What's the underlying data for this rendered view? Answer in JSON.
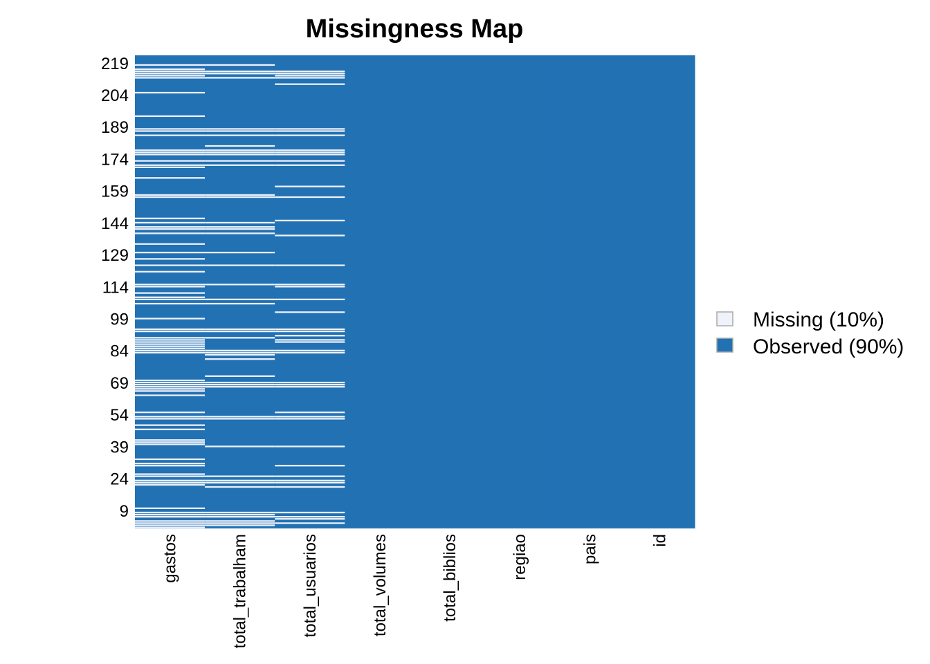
{
  "chart_data": {
    "type": "heatmap",
    "title": "Missingness Map",
    "xlabel": "",
    "ylabel": "",
    "variables": [
      "gastos",
      "total_trabalham",
      "total_usuarios",
      "total_volumes",
      "total_biblios",
      "regiao",
      "pais",
      "id"
    ],
    "y_tick_labels": [
      "219",
      "204",
      "189",
      "174",
      "159",
      "144",
      "129",
      "114",
      "99",
      "84",
      "69",
      "54",
      "39",
      "24",
      "9"
    ],
    "n_rows": 222,
    "ylim": [
      1,
      222
    ],
    "legend": {
      "position": "right",
      "entries": [
        {
          "label": "Missing (10%)",
          "color": "#eef2fa"
        },
        {
          "label": "Observed (90%)",
          "color": "#2271b3"
        }
      ]
    },
    "colors": {
      "missing": "#eef2fa",
      "observed": "#2271b3"
    },
    "missing_rows": {
      "gastos": [
        1,
        2,
        3,
        4,
        6,
        7,
        8,
        10,
        21,
        22,
        23,
        25,
        26,
        30,
        31,
        33,
        40,
        41,
        42,
        47,
        49,
        52,
        53,
        55,
        63,
        65,
        66,
        67,
        68,
        69,
        70,
        83,
        84,
        85,
        86,
        87,
        88,
        89,
        90,
        93,
        94,
        99,
        106,
        108,
        109,
        111,
        114,
        115,
        121,
        124,
        127,
        130,
        134,
        139,
        141,
        142,
        144,
        146,
        156,
        157,
        165,
        170,
        171,
        173,
        176,
        177,
        178,
        185,
        187,
        188,
        194,
        205,
        212,
        213,
        214,
        215,
        216,
        218
      ],
      "total_trabalham": [
        2,
        3,
        4,
        6,
        7,
        8,
        20,
        22,
        23,
        25,
        39,
        52,
        53,
        67,
        68,
        69,
        72,
        80,
        82,
        83,
        84,
        90,
        93,
        94,
        106,
        108,
        115,
        124,
        130,
        139,
        141,
        142,
        144,
        156,
        157,
        171,
        173,
        176,
        177,
        178,
        180,
        185,
        187,
        188,
        212,
        214,
        215,
        218
      ],
      "total_usuarios": [
        3,
        5,
        6,
        8,
        20,
        22,
        23,
        25,
        30,
        39,
        52,
        53,
        55,
        67,
        68,
        69,
        83,
        84,
        88,
        89,
        91,
        93,
        94,
        102,
        108,
        114,
        115,
        124,
        138,
        145,
        156,
        161,
        171,
        173,
        176,
        177,
        178,
        185,
        187,
        188,
        209,
        212,
        213,
        214,
        215
      ]
    }
  }
}
